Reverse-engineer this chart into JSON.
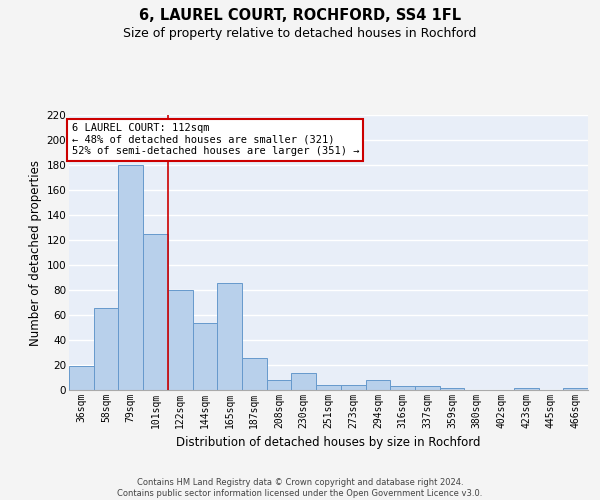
{
  "title": "6, LAUREL COURT, ROCHFORD, SS4 1FL",
  "subtitle": "Size of property relative to detached houses in Rochford",
  "xlabel": "Distribution of detached houses by size in Rochford",
  "ylabel": "Number of detached properties",
  "categories": [
    "36sqm",
    "58sqm",
    "79sqm",
    "101sqm",
    "122sqm",
    "144sqm",
    "165sqm",
    "187sqm",
    "208sqm",
    "230sqm",
    "251sqm",
    "273sqm",
    "294sqm",
    "316sqm",
    "337sqm",
    "359sqm",
    "380sqm",
    "402sqm",
    "423sqm",
    "445sqm",
    "466sqm"
  ],
  "values": [
    19,
    66,
    180,
    125,
    80,
    54,
    86,
    26,
    8,
    14,
    4,
    4,
    8,
    3,
    3,
    2,
    0,
    0,
    2,
    0,
    2
  ],
  "bar_color": "#b8d0eb",
  "bar_edge_color": "#6699cc",
  "red_line_x": 3.5,
  "annotation_text": "6 LAUREL COURT: 112sqm\n← 48% of detached houses are smaller (321)\n52% of semi-detached houses are larger (351) →",
  "annotation_box_color": "#ffffff",
  "annotation_box_edge": "#cc0000",
  "red_line_color": "#cc0000",
  "ylim": [
    0,
    220
  ],
  "yticks": [
    0,
    20,
    40,
    60,
    80,
    100,
    120,
    140,
    160,
    180,
    200,
    220
  ],
  "footer": "Contains HM Land Registry data © Crown copyright and database right 2024.\nContains public sector information licensed under the Open Government Licence v3.0.",
  "bg_color": "#e8eef8",
  "grid_color": "#ffffff",
  "fig_bg_color": "#f4f4f4",
  "title_fontsize": 10.5,
  "subtitle_fontsize": 9,
  "axis_label_fontsize": 8.5,
  "tick_fontsize": 7,
  "annotation_fontsize": 7.5,
  "footer_fontsize": 6
}
